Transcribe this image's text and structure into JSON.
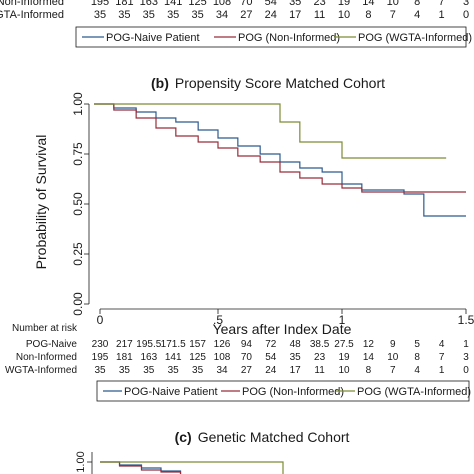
{
  "top_strip": {
    "rows": [
      {
        "label": "Non-Informed",
        "values": [
          "195",
          "181",
          "163",
          "141",
          "125",
          "108",
          "70",
          "54",
          "35",
          "23",
          "19",
          "14",
          "10",
          "8",
          "7",
          "3"
        ]
      },
      {
        "label": "WGTA-Informed",
        "values": [
          "35",
          "35",
          "35",
          "35",
          "35",
          "34",
          "27",
          "24",
          "17",
          "11",
          "10",
          "8",
          "7",
          "4",
          "1",
          "0"
        ]
      }
    ],
    "legend": [
      "POG-Naive Patient",
      "POG (Non-Informed)",
      "POG (WGTA-Informed)"
    ]
  },
  "colors": {
    "naive": "#2e5a8f",
    "noninformed": "#9b2d3a",
    "wgta": "#7d8c35",
    "axis": "#1a1a1a"
  },
  "chart_data": [
    {
      "type": "line",
      "step": true,
      "panel_letter": "(b)",
      "title": "Propensity Score Matched Cohort",
      "xlabel": "Years after Index Date",
      "ylabel": "Probability of Survival",
      "xlim": [
        0,
        1.5
      ],
      "ylim": [
        0,
        1
      ],
      "x_ticks": [
        0,
        0.5,
        1,
        1.5
      ],
      "x_tick_labels": [
        "0",
        ".5",
        "1",
        "1.5"
      ],
      "y_ticks": [
        0,
        0.25,
        0.5,
        0.75,
        1
      ],
      "y_tick_labels": [
        "0.00",
        "0.25",
        "0.50",
        "0.75",
        "1.00"
      ],
      "grid": false,
      "series": [
        {
          "name": "POG-Naive Patient",
          "color_key": "naive",
          "x": [
            0,
            0.08,
            0.17,
            0.25,
            0.33,
            0.42,
            0.5,
            0.58,
            0.67,
            0.75,
            0.83,
            0.92,
            1.0,
            1.08,
            1.25,
            1.33,
            1.5
          ],
          "y": [
            1.0,
            0.98,
            0.96,
            0.93,
            0.91,
            0.87,
            0.83,
            0.79,
            0.75,
            0.71,
            0.68,
            0.66,
            0.6,
            0.57,
            0.55,
            0.44,
            0.44
          ]
        },
        {
          "name": "POG (Non-Informed)",
          "color_key": "noninformed",
          "x": [
            0,
            0.08,
            0.17,
            0.25,
            0.33,
            0.42,
            0.5,
            0.58,
            0.67,
            0.75,
            0.83,
            0.92,
            1.0,
            1.08,
            1.5
          ],
          "y": [
            1.0,
            0.97,
            0.93,
            0.88,
            0.84,
            0.81,
            0.78,
            0.74,
            0.71,
            0.66,
            0.63,
            0.6,
            0.58,
            0.56,
            0.56
          ]
        },
        {
          "name": "POG (WGTA-Informed)",
          "color_key": "wgta",
          "x": [
            0,
            0.75,
            0.83,
            1.0,
            1.42
          ],
          "y": [
            1.0,
            0.91,
            0.81,
            0.73,
            0.73
          ]
        }
      ],
      "risk_table": {
        "title": "Number at risk",
        "rows": [
          {
            "label": "POG-Naive",
            "values": [
              "230",
              "217",
              "195.5",
              "171.5",
              "157",
              "126",
              "94",
              "72",
              "48",
              "38.5",
              "27.5",
              "12",
              "9",
              "5",
              "4",
              "1"
            ]
          },
          {
            "label": "Non-Informed",
            "values": [
              "195",
              "181",
              "163",
              "141",
              "125",
              "108",
              "70",
              "54",
              "35",
              "23",
              "19",
              "14",
              "10",
              "8",
              "7",
              "3"
            ]
          },
          {
            "label": "WGTA-Informed",
            "values": [
              "35",
              "35",
              "35",
              "35",
              "35",
              "34",
              "27",
              "24",
              "17",
              "11",
              "10",
              "8",
              "7",
              "4",
              "1",
              "0"
            ]
          }
        ]
      },
      "legend": [
        "POG-Naive Patient",
        "POG (Non-Informed)",
        "POG (WGTA-Informed)"
      ]
    },
    {
      "type": "line",
      "step": true,
      "panel_letter": "(c)",
      "title": "Genetic Matched Cohort",
      "ylabel_fragment": "al",
      "y_tick_labels": [
        "1.00"
      ],
      "series": [
        {
          "color_key": "naive",
          "x": [
            0,
            0.08,
            0.17,
            0.25,
            0.33
          ],
          "y": [
            1.0,
            0.985,
            0.97,
            0.955,
            0.94
          ]
        },
        {
          "color_key": "noninformed",
          "x": [
            0,
            0.08,
            0.17,
            0.25,
            0.33
          ],
          "y": [
            1.0,
            0.98,
            0.96,
            0.95,
            0.93
          ]
        },
        {
          "color_key": "wgta",
          "x": [
            0,
            0.75
          ],
          "y": [
            1.0,
            0.93
          ]
        }
      ]
    }
  ]
}
